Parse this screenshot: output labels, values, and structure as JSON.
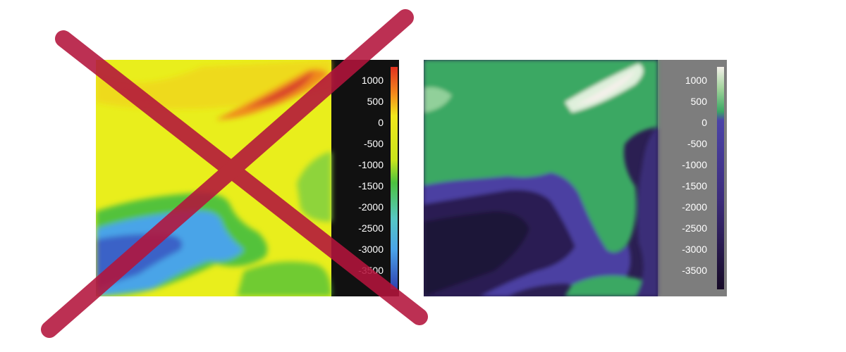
{
  "colorbar_ticks": [
    "1000",
    "500",
    "0",
    "-500",
    "-1000",
    "-1500",
    "-2000",
    "-2500",
    "-3000",
    "-3500"
  ],
  "left_map": {
    "status": "rejected",
    "colormap": "rainbow",
    "colors": {
      "background": "#111111",
      "land": "#e9ee1c",
      "high": "#d9412a",
      "mid": "#f08a1c",
      "shelf": "#52c23a",
      "deep": "#4aa4e8",
      "abyss": "#3a62c7"
    }
  },
  "right_map": {
    "status": "accepted",
    "colormap": "viridis-like",
    "colors": {
      "background": "#7d7d7d",
      "land": "#3aa864",
      "high": "#f4f0ea",
      "shelf": "#4b3fa2",
      "deep": "#2b1f52",
      "abyss": "#1f1238"
    }
  },
  "cross_mark": {
    "color": "#b3143c"
  }
}
